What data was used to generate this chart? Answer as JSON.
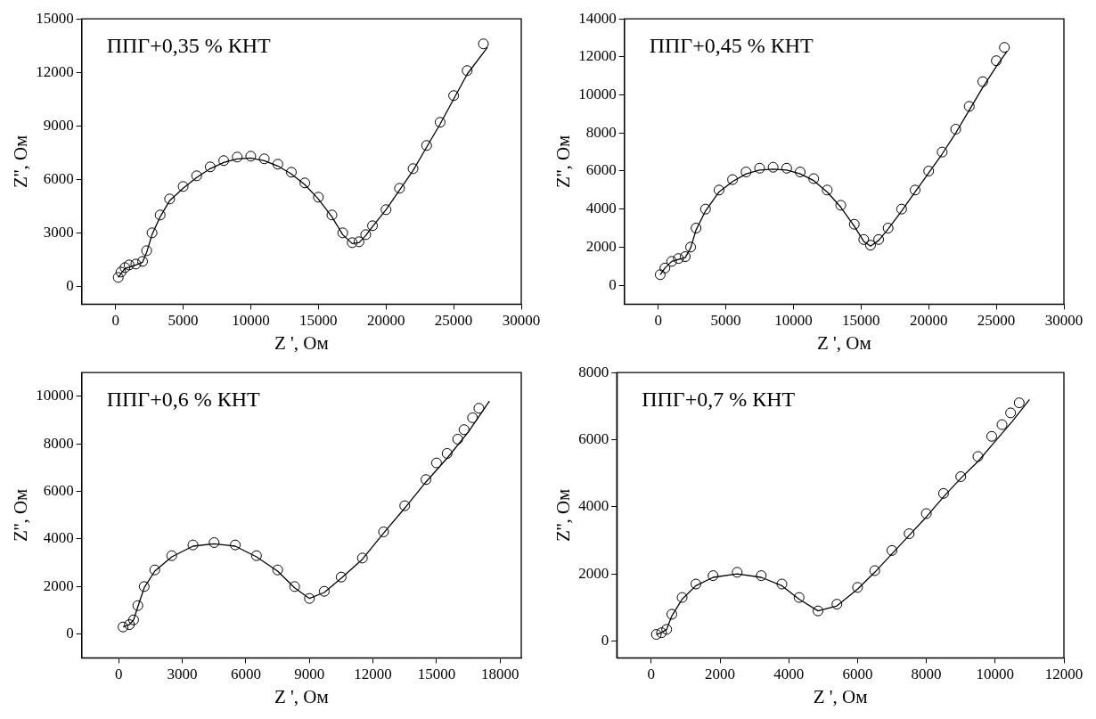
{
  "chart_data": [
    {
      "type": "scatter",
      "annotations": [
        "ППГ+0,35 % КНТ"
      ],
      "xlabel": "Z ', Ом",
      "ylabel": "Z'', Ом",
      "xlim": [
        -2500,
        30000
      ],
      "ylim": [
        -1000,
        15000
      ],
      "xticks": [
        0,
        5000,
        10000,
        15000,
        20000,
        25000,
        30000
      ],
      "yticks": [
        0,
        3000,
        6000,
        9000,
        12000,
        15000
      ],
      "grid": false,
      "legend": false,
      "series": [
        {
          "marker": "circle",
          "color": "#000000",
          "x": [
            200,
            400,
            700,
            1000,
            1500,
            2000,
            2300,
            2700,
            3300,
            4000,
            5000,
            6000,
            7000,
            8000,
            9000,
            10000,
            11000,
            12000,
            13000,
            14000,
            15000,
            16000,
            16800,
            17500,
            18000,
            18500,
            19000,
            20000,
            21000,
            22000,
            23000,
            24000,
            25000,
            26000,
            27200
          ],
          "values": [
            500,
            800,
            1050,
            1200,
            1250,
            1400,
            2000,
            3000,
            4000,
            4900,
            5600,
            6200,
            6700,
            7050,
            7250,
            7300,
            7150,
            6850,
            6400,
            5800,
            5000,
            4000,
            3000,
            2450,
            2500,
            2900,
            3400,
            4300,
            5500,
            6600,
            7900,
            9200,
            10700,
            12100,
            13600
          ]
        },
        {
          "type": "line",
          "marker": "none",
          "color": "#000000",
          "x": [
            200,
            700,
            1500,
            2000,
            2300,
            2700,
            3300,
            4000,
            5000,
            6000,
            7000,
            8000,
            9000,
            10000,
            11000,
            12000,
            13000,
            14000,
            15000,
            16000,
            16800,
            17500,
            18000,
            18500,
            19000,
            20000,
            21000,
            22000,
            23000,
            24000,
            25000,
            26000,
            27500
          ],
          "values": [
            500,
            1000,
            1200,
            1350,
            1900,
            2900,
            3900,
            4800,
            5500,
            6100,
            6600,
            6950,
            7150,
            7200,
            7050,
            6750,
            6300,
            5700,
            4900,
            3900,
            2900,
            2400,
            2450,
            2850,
            3350,
            4300,
            5400,
            6500,
            7800,
            9100,
            10500,
            11900,
            13400
          ]
        }
      ]
    },
    {
      "type": "scatter",
      "annotations": [
        "ППГ+0,45 % КНТ"
      ],
      "xlabel": "Z ', Ом",
      "ylabel": "Z'', Ом",
      "xlim": [
        -2500,
        30000
      ],
      "ylim": [
        -1000,
        14000
      ],
      "xticks": [
        0,
        5000,
        10000,
        15000,
        20000,
        25000,
        30000
      ],
      "yticks": [
        0,
        2000,
        4000,
        6000,
        8000,
        10000,
        12000,
        14000
      ],
      "grid": false,
      "legend": false,
      "series": [
        {
          "marker": "circle",
          "color": "#000000",
          "x": [
            150,
            500,
            1000,
            1500,
            2000,
            2400,
            2800,
            3500,
            4500,
            5500,
            6500,
            7500,
            8500,
            9500,
            10500,
            11500,
            12500,
            13500,
            14500,
            15200,
            15700,
            16300,
            17000,
            18000,
            19000,
            20000,
            21000,
            22000,
            23000,
            24000,
            25000,
            25600
          ],
          "values": [
            550,
            900,
            1250,
            1400,
            1500,
            2000,
            3000,
            4000,
            5000,
            5550,
            5950,
            6150,
            6200,
            6150,
            5950,
            5600,
            5000,
            4200,
            3200,
            2400,
            2100,
            2400,
            3000,
            4000,
            5000,
            6000,
            7000,
            8200,
            9400,
            10700,
            11800,
            12500
          ]
        },
        {
          "type": "line",
          "marker": "none",
          "color": "#000000",
          "x": [
            150,
            500,
            1000,
            1500,
            2000,
            2400,
            2800,
            3500,
            4500,
            5500,
            6500,
            7500,
            8500,
            9500,
            10500,
            11500,
            12500,
            13500,
            14500,
            15200,
            15700,
            16300,
            17000,
            18000,
            19000,
            20000,
            21000,
            22000,
            23000,
            24000,
            25000,
            25800
          ],
          "values": [
            550,
            900,
            1250,
            1350,
            1450,
            1950,
            2900,
            3900,
            4900,
            5450,
            5850,
            6050,
            6100,
            6050,
            5850,
            5500,
            4900,
            4100,
            3100,
            2300,
            2050,
            2350,
            2950,
            3900,
            4900,
            5900,
            6900,
            8000,
            9200,
            10400,
            11500,
            12300
          ]
        }
      ]
    },
    {
      "type": "scatter",
      "annotations": [
        "ППГ+0,6 % КНТ"
      ],
      "xlabel": "Z ', Ом",
      "ylabel": "Z'', Ом",
      "xlim": [
        -1750,
        19000
      ],
      "ylim": [
        -1000,
        11000
      ],
      "xticks": [
        0,
        3000,
        6000,
        9000,
        12000,
        15000,
        18000
      ],
      "yticks": [
        0,
        2000,
        4000,
        6000,
        8000,
        10000
      ],
      "grid": false,
      "legend": false,
      "series": [
        {
          "marker": "circle",
          "color": "#000000",
          "x": [
            200,
            500,
            700,
            900,
            1200,
            1700,
            2500,
            3500,
            4500,
            5500,
            6500,
            7500,
            8300,
            9000,
            9700,
            10500,
            11500,
            12500,
            13500,
            14500,
            15000,
            15500,
            16000,
            16300,
            16700,
            17000
          ],
          "values": [
            300,
            400,
            600,
            1200,
            2000,
            2700,
            3300,
            3750,
            3850,
            3750,
            3300,
            2700,
            2000,
            1500,
            1800,
            2400,
            3200,
            4300,
            5400,
            6500,
            7200,
            7600,
            8200,
            8600,
            9100,
            9500
          ]
        },
        {
          "type": "line",
          "marker": "none",
          "color": "#000000",
          "x": [
            200,
            500,
            700,
            900,
            1200,
            1700,
            2500,
            3500,
            4500,
            5500,
            6500,
            7500,
            8300,
            9000,
            9700,
            10500,
            11500,
            12500,
            13500,
            14500,
            15500,
            16500,
            17500
          ],
          "values": [
            300,
            400,
            600,
            1150,
            1950,
            2650,
            3250,
            3700,
            3800,
            3700,
            3250,
            2650,
            1950,
            1500,
            1750,
            2350,
            3150,
            4250,
            5300,
            6400,
            7400,
            8500,
            9800
          ]
        }
      ]
    },
    {
      "type": "scatter",
      "annotations": [
        "ППГ+0,7 % КНТ"
      ],
      "xlabel": "Z ', Ом",
      "ylabel": "Z'', Ом",
      "xlim": [
        -1000,
        12000
      ],
      "ylim": [
        -500,
        8000
      ],
      "xticks": [
        0,
        2000,
        4000,
        6000,
        8000,
        10000,
        12000
      ],
      "yticks": [
        0,
        2000,
        4000,
        6000,
        8000
      ],
      "grid": false,
      "legend": false,
      "series": [
        {
          "marker": "circle",
          "color": "#000000",
          "x": [
            150,
            300,
            450,
            600,
            900,
            1300,
            1800,
            2500,
            3200,
            3800,
            4300,
            4850,
            5400,
            6000,
            6500,
            7000,
            7500,
            8000,
            8500,
            9000,
            9500,
            9900,
            10200,
            10450,
            10700
          ],
          "values": [
            200,
            250,
            350,
            800,
            1300,
            1700,
            1950,
            2050,
            1950,
            1700,
            1300,
            900,
            1100,
            1600,
            2100,
            2700,
            3200,
            3800,
            4400,
            4900,
            5500,
            6100,
            6450,
            6800,
            7100
          ]
        },
        {
          "type": "line",
          "marker": "none",
          "color": "#000000",
          "x": [
            150,
            300,
            450,
            600,
            900,
            1300,
            1800,
            2500,
            3200,
            3800,
            4300,
            4850,
            5400,
            6000,
            6500,
            7000,
            7500,
            8000,
            8500,
            9000,
            9500,
            10000,
            10500,
            11000
          ],
          "values": [
            200,
            250,
            350,
            750,
            1250,
            1650,
            1900,
            2000,
            1900,
            1650,
            1250,
            900,
            1050,
            1550,
            2050,
            2600,
            3150,
            3700,
            4300,
            4850,
            5350,
            5950,
            6550,
            7200
          ]
        }
      ]
    }
  ]
}
